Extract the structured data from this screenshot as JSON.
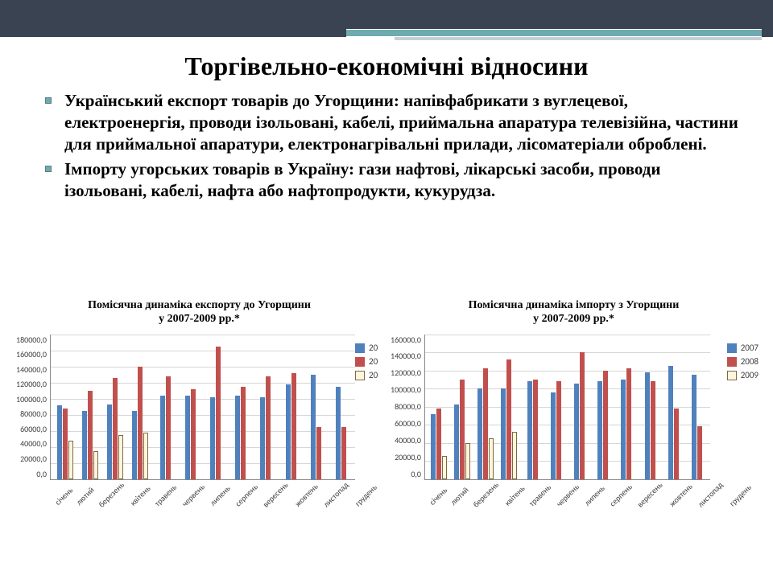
{
  "title": "Торгівельно-економічні відносини",
  "bullets": [
    {
      "bold": "Український експорт товарів до Угорщини",
      "tail": ": напівфабрикати з вуглецевої, електроенергія, проводи ізольовані, кабелі, приймальна апаратура телевізійна, частини для приймальної апаратури, електронагрівальні прилади, лісоматеріали оброблені."
    },
    {
      "bold": "Імпорту угорських товарів в Україну",
      "tail": ": гази нафтові, лікарські засоби, проводи ізольовані, кабелі, нафта або нафтопродукти, кукурудза."
    }
  ],
  "months": [
    "січень",
    "лютий",
    "березень",
    "квітень",
    "травень",
    "червень",
    "липень",
    "серпень",
    "вересень",
    "жовтень",
    "листопад",
    "грудень"
  ],
  "colors": {
    "s2007": "#4f81bd",
    "s2008": "#c0504d",
    "s2009_fill": "#fff5dd",
    "s2009_border": "#7b6a3e",
    "grid": "#d6d6d6",
    "axis": "#888888",
    "topbar": "#3a4351",
    "accent": "#6faab0"
  },
  "export_chart": {
    "type": "bar",
    "title_l1": "Помісячна динаміка експорту до Угорщини",
    "title_l2": "у 2007-2009 рр.*",
    "ymax": 180000,
    "ytick_step": 20000,
    "yticks": [
      "180000,0",
      "160000,0",
      "140000,0",
      "120000,0",
      "100000,0",
      "80000,0",
      "60000,0",
      "40000,0",
      "20000,0",
      "0,0"
    ],
    "legend": [
      "20",
      "20",
      "20"
    ],
    "legend_hollow": [
      false,
      false,
      true
    ],
    "series": {
      "2007": [
        92000,
        85000,
        93000,
        85000,
        104000,
        104000,
        102000,
        104000,
        102000,
        118000,
        130000,
        115000
      ],
      "2008": [
        88000,
        110000,
        126000,
        140000,
        128000,
        112000,
        165000,
        115000,
        128000,
        132000,
        65000,
        65000
      ],
      "2009": [
        48000,
        35000,
        55000,
        58000,
        null,
        null,
        null,
        null,
        null,
        null,
        null,
        null
      ]
    }
  },
  "import_chart": {
    "type": "bar",
    "title_l1": "Помісячна динаміка імпорту з  Угорщини",
    "title_l2": "у 2007-2009 рр.*",
    "ymax": 160000,
    "ytick_step": 20000,
    "yticks": [
      "160000,0",
      "140000,0",
      "120000,0",
      "100000,0",
      "80000,0",
      "60000,0",
      "40000,0",
      "20000,0",
      "0,0"
    ],
    "legend": [
      "2007",
      "2008",
      "2009"
    ],
    "legend_hollow": [
      false,
      false,
      true
    ],
    "series": {
      "2007": [
        72000,
        82000,
        100000,
        100000,
        108000,
        96000,
        105000,
        108000,
        110000,
        118000,
        125000,
        115000
      ],
      "2008": [
        78000,
        110000,
        122000,
        132000,
        110000,
        108000,
        140000,
        120000,
        122000,
        108000,
        78000,
        58000
      ],
      "2009": [
        25000,
        40000,
        45000,
        52000,
        null,
        null,
        null,
        null,
        null,
        null,
        null,
        null
      ]
    }
  }
}
